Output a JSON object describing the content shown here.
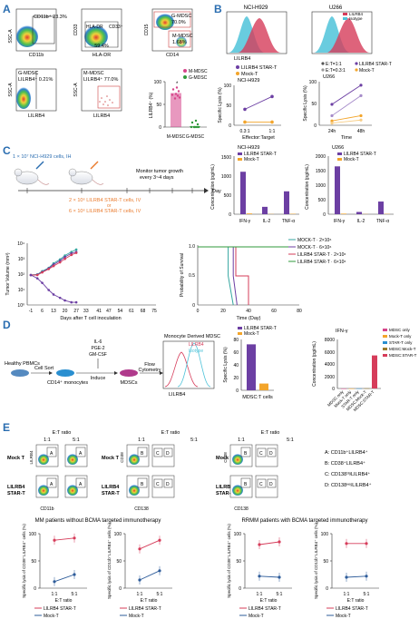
{
  "colors": {
    "lilrb4": "#d63c5a",
    "mock": "#f3a52b",
    "isotype": "#4fc3d9",
    "purple": "#6c3fa3",
    "blue": "#2e5c9a",
    "green": "#2f9a3b",
    "mdsc_pink": "#d6448a",
    "orange": "#ea7a2c",
    "teal": "#35a6a0"
  },
  "panels": {
    "A": "A",
    "B": "B",
    "C": "C",
    "D": "D",
    "E": "E"
  },
  "panelA": {
    "p1": {
      "gate": "CD11b⁺ 23.3%",
      "y": "SSC-A",
      "x": "CD11b"
    },
    "p2": {
      "gate1": "HLA-DR",
      "gate2": "CD33⁺",
      "pct": "59.4%",
      "y": "CD33",
      "x": "HLA-DR"
    },
    "p3": {
      "g1": "G-MDSC",
      "g1pct": "70.0%",
      "g2": "M-MDSC",
      "g2pct": "1.68%",
      "y": "CD15",
      "x": "CD14"
    },
    "p4": {
      "g": "G-MDSC",
      "pct": "LILRB4⁺ 0.21%",
      "y": "SSC-A",
      "x": "LILRB4"
    },
    "p5": {
      "g": "M-MDSC",
      "pct": "LILRB4⁺ 77.0%",
      "y": "SSC-A",
      "x": "LILRB4"
    },
    "bar": {
      "ylabel": "LILRB4⁺ (%)",
      "ticks": [
        "0",
        "50",
        "100"
      ],
      "cats": [
        "M-MDSC",
        "G-MDSC"
      ],
      "legend": [
        "M-MDSC",
        "G-MDSC"
      ],
      "star": "*"
    }
  },
  "panelB": {
    "h1": {
      "title": "NCI-H929",
      "x": "LILRB4"
    },
    "h2": {
      "title": "U266",
      "legend": [
        "LILRB4",
        "Isotype"
      ]
    },
    "l1": {
      "legend": [
        "LILRB4 STAR-T",
        "Mock-T"
      ],
      "sub": "NCI-H929",
      "ylabel": "Specific Lysis (%)",
      "xlabel": "Effector:Target",
      "xticks": [
        "0.3:1",
        "1:1"
      ],
      "yticks": [
        "0",
        "50",
        "100"
      ]
    },
    "l2": {
      "legend1": [
        "E:T=1:1",
        "E:T=0.3:1"
      ],
      "legend2": [
        "LILRB4 STAR-T",
        "Mock-T"
      ],
      "sub": "U266",
      "ylabel": "Specific Lysis (%)",
      "xlabel": "Time",
      "xticks": [
        "24h",
        "48h"
      ],
      "yticks": [
        "0",
        "50",
        "100"
      ]
    }
  },
  "panelC": {
    "schema": {
      "cells": "1 × 10⁷ NCI-H929 cells, IH",
      "monitor": "Monitor tumor growth",
      "every": "every 3~4 days",
      "day": "Day",
      "treat1": "2 × 10⁶ LILRB4 STAR-T cells, IV",
      "or": "or",
      "treat2": "6 × 10⁶ LILRB4 STAR-T cells, IV"
    },
    "cyto1": {
      "title": "NCI-H929",
      "legend": [
        "LILRB4 STAR-T",
        "Mock-T"
      ],
      "ylabel": "Concentration (pg/mL)",
      "yticks": [
        "0",
        "500",
        "1000",
        "1500"
      ],
      "cats": [
        "IFN-γ",
        "IL-2",
        "TNF-α"
      ]
    },
    "cyto2": {
      "title": "U266",
      "legend": [
        "LILRB4 STAR-T",
        "Mock-T"
      ],
      "ylabel": "Concentration (pg/mL)",
      "yticks": [
        "0",
        "500",
        "1000",
        "1500",
        "2000"
      ],
      "cats": [
        "IFN-γ",
        "IL-2",
        "TNF-α"
      ]
    },
    "tumor": {
      "ylabel": "Tumor Volume (mm³)",
      "xlabel": "Days after T cell inoculation",
      "yticks": [
        "10⁰",
        "10¹",
        "10²",
        "10³",
        "10⁴"
      ],
      "xticks": [
        "-1",
        "6",
        "13",
        "20",
        "27",
        "33",
        "41",
        "47",
        "54",
        "61",
        "68",
        "75"
      ]
    },
    "surv": {
      "ylabel": "Probability of Survival",
      "xlabel": "Time (Day)",
      "yticks": [
        "0",
        "0.5",
        "1.0"
      ],
      "xticks": [
        "0",
        "20",
        "40",
        "60",
        "80"
      ],
      "legend": [
        "MOCK-T · 2×10⁶",
        "MOCK-T · 6×10⁶",
        "LILRB4 STAR-T · 2×10⁶",
        "LILRB4 STAR-T · 6×10⁶"
      ]
    }
  },
  "panelD": {
    "pbmc": "Healthy PBMCs",
    "sort": "Cell Sort",
    "cd14": "CD14⁺ monocytes",
    "cytokines": [
      "IL-6",
      "PGE-2",
      "GM-CSF"
    ],
    "induce": "Induce",
    "mdscs": "MDSCs",
    "flow1": "Flow",
    "flow2": "Cytometry",
    "histo": {
      "title": "Monocyte Derived MDSC",
      "legend": [
        "LILRB4",
        "Isotype"
      ],
      "x": "LILRB4"
    },
    "lysis": {
      "legend": [
        "LILRB4 STAR-T",
        "Mock-T"
      ],
      "ylabel": "Specific Lysis (%)",
      "yticks": [
        "0",
        "20",
        "40",
        "60",
        "80"
      ],
      "xlabel": "MDSC:T cells"
    },
    "ifng": {
      "title": "IFN-γ",
      "ylabel": "Concentration (pg/mL)",
      "yticks": [
        "0",
        "2000",
        "4000",
        "6000",
        "8000"
      ],
      "cats": [
        "MDSC only",
        "Mock-T only",
        "STAR-T only",
        "MDSC:Mock-T",
        "MDSC:STAR-T"
      ],
      "legend": [
        "MDSC only",
        "Mock-T only",
        "STAR-T only",
        "MDSC:Mock-T",
        "MDSC:STAR-T"
      ]
    }
  },
  "panelE": {
    "et": "E:T ratio",
    "r11": "1:1",
    "r51": "5:1",
    "mock": "Mock T",
    "star1": "LILRB4",
    "star2": "STAR-T",
    "x_cd11b": "CD11b",
    "y_lilrb4": "LILRB4",
    "x_cd138": "CD138",
    "y_cd38": "CD38",
    "gates": [
      "A",
      "B",
      "C",
      "D"
    ],
    "key": [
      "A:  CD11b⁺LILRB4⁺",
      "B:  CD38⁺LILRB4⁺",
      "C:  CD138¹ᴵᵍLILRB4⁺",
      "D:  CD138ⁿᵉᵍLILRB4⁺"
    ],
    "mm_title": "MM  patients without BCMA  targeted immunotherapy",
    "rr_title": "RRMM  patients with BCMA targeted immunotherapy",
    "ylab1": "Specific lysis of CD38⁺LILRB4⁺ cells (%)",
    "ylab2": "Specific lysis of CD11b⁺LILRB4⁺ cells (%)",
    "yticks": [
      "0",
      "50",
      "100"
    ],
    "xticks": [
      "1:1",
      "5:1"
    ],
    "xlabel": "E:T ratio",
    "legend": [
      "LILRB4 STAR-T",
      "Mock-T"
    ]
  },
  "chart_data": [
    {
      "type": "scatter",
      "panel": "A",
      "title": "",
      "ylabel": "LILRB4⁺ (%)",
      "ylim": [
        0,
        100
      ],
      "categories": [
        "M-MDSC",
        "G-MDSC"
      ],
      "series": [
        {
          "name": "M-MDSC",
          "values": [
            75
          ]
        },
        {
          "name": "G-MDSC",
          "values": [
            2
          ]
        }
      ]
    },
    {
      "type": "line",
      "panel": "B-NCI-H929",
      "xlabel": "Effector:Target",
      "ylabel": "Specific Lysis (%)",
      "ylim": [
        0,
        100
      ],
      "x": [
        "0.3:1",
        "1:1"
      ],
      "series": [
        {
          "name": "LILRB4 STAR-T",
          "values": [
            40,
            72
          ]
        },
        {
          "name": "Mock-T",
          "values": [
            8,
            8
          ]
        }
      ]
    },
    {
      "type": "line",
      "panel": "B-U266",
      "xlabel": "Time",
      "ylabel": "Specific Lysis (%)",
      "ylim": [
        0,
        100
      ],
      "x": [
        "24h",
        "48h"
      ],
      "series": [
        {
          "name": "LILRB4 STAR-T E:T=1:1",
          "values": [
            48,
            92
          ]
        },
        {
          "name": "LILRB4 STAR-T E:T=0.3:1",
          "values": [
            22,
            68
          ]
        },
        {
          "name": "Mock-T E:T=1:1",
          "values": [
            10,
            22
          ]
        },
        {
          "name": "Mock-T E:T=0.3:1",
          "values": [
            5,
            12
          ]
        }
      ]
    },
    {
      "type": "bar",
      "panel": "C-NCI-H929",
      "title": "NCI-H929",
      "ylabel": "Concentration (pg/mL)",
      "ylim": [
        0,
        1500
      ],
      "categories": [
        "IFN-γ",
        "IL-2",
        "TNF-α"
      ],
      "series": [
        {
          "name": "LILRB4 STAR-T",
          "values": [
            1150,
            200,
            620
          ]
        },
        {
          "name": "Mock-T",
          "values": [
            20,
            5,
            10
          ]
        }
      ]
    },
    {
      "type": "bar",
      "panel": "C-U266",
      "title": "U266",
      "ylabel": "Concentration (pg/mL)",
      "ylim": [
        0,
        2000
      ],
      "categories": [
        "IFN-γ",
        "IL-2",
        "TNF-α"
      ],
      "series": [
        {
          "name": "LILRB4 STAR-T",
          "values": [
            1700,
            80,
            450
          ]
        },
        {
          "name": "Mock-T",
          "values": [
            20,
            5,
            10
          ]
        }
      ]
    },
    {
      "type": "line",
      "panel": "C-tumor",
      "ylabel": "Tumor Volume (mm³)",
      "xlabel": "Days after T cell inoculation",
      "yscale": "log",
      "x": [
        -1,
        3,
        6,
        10,
        13,
        17,
        20,
        24,
        27
      ],
      "series": [
        {
          "name": "MOCK-T 2×10⁶",
          "values": [
            100,
            110,
            180,
            300,
            600,
            1100,
            2000,
            3500,
            5000
          ]
        },
        {
          "name": "MOCK-T 6×10⁶",
          "values": [
            100,
            105,
            160,
            280,
            500,
            900,
            1600,
            2800,
            3500
          ]
        },
        {
          "name": "LILRB4 STAR-T 2×10⁶",
          "values": [
            100,
            100,
            150,
            250,
            400,
            700,
            1200,
            2200,
            3000
          ]
        },
        {
          "name": "LILRB4 STAR-T 6×10⁶",
          "values": [
            100,
            60,
            30,
            10,
            5,
            3,
            2,
            1.5,
            1.5
          ]
        }
      ]
    },
    {
      "type": "line",
      "panel": "C-survival",
      "ylabel": "Probability of Survival",
      "xlabel": "Time (Day)",
      "xlim": [
        0,
        80
      ],
      "ylim": [
        0,
        1
      ],
      "series": [
        {
          "name": "MOCK-T 2×10⁶",
          "x": [
            0,
            24,
            24,
            28
          ],
          "values": [
            1,
            1,
            0.5,
            0
          ]
        },
        {
          "name": "MOCK-T 6×10⁶",
          "x": [
            0,
            28,
            28,
            31
          ],
          "values": [
            1,
            1,
            0.5,
            0
          ]
        },
        {
          "name": "LILRB4 STAR-T 2×10⁶",
          "x": [
            0,
            30,
            30,
            40,
            40
          ],
          "values": [
            1,
            1,
            0.5,
            0.5,
            0
          ]
        },
        {
          "name": "LILRB4 STAR-T 6×10⁶",
          "x": [
            0,
            76
          ],
          "values": [
            1,
            1
          ]
        }
      ]
    },
    {
      "type": "bar",
      "panel": "D-lysis",
      "ylabel": "Specific Lysis (%)",
      "ylim": [
        0,
        80
      ],
      "categories": [
        "MDSC:T cells"
      ],
      "series": [
        {
          "name": "LILRB4 STAR-T",
          "values": [
            75
          ]
        },
        {
          "name": "Mock-T",
          "values": [
            11
          ]
        }
      ]
    },
    {
      "type": "bar",
      "panel": "D-IFNg",
      "title": "IFN-γ",
      "ylabel": "Concentration (pg/mL)",
      "ylim": [
        0,
        8000
      ],
      "categories": [
        "MDSC only",
        "Mock-T only",
        "STAR-T only",
        "MDSC:Mock-T",
        "MDSC:STAR-T"
      ],
      "values": [
        0,
        0,
        20,
        30,
        5600
      ]
    },
    {
      "type": "line",
      "panel": "E-MM-CD38",
      "ylabel": "Specific lysis of CD38⁺LILRB4⁺ cells (%)",
      "xlabel": "E:T ratio",
      "ylim": [
        0,
        100
      ],
      "x": [
        "1:1",
        "5:1"
      ],
      "series": [
        {
          "name": "LILRB4 STAR-T",
          "values": [
            88,
            92
          ]
        },
        {
          "name": "Mock-T",
          "values": [
            12,
            25
          ]
        }
      ]
    },
    {
      "type": "line",
      "panel": "E-MM-CD11b",
      "ylabel": "Specific lysis of CD11b⁺LILRB4⁺ cells (%)",
      "xlabel": "E:T ratio",
      "ylim": [
        0,
        100
      ],
      "x": [
        "1:1",
        "5:1"
      ],
      "series": [
        {
          "name": "LILRB4 STAR-T",
          "values": [
            72,
            88
          ]
        },
        {
          "name": "Mock-T",
          "values": [
            15,
            32
          ]
        }
      ]
    },
    {
      "type": "line",
      "panel": "E-RRMM-CD38",
      "ylabel": "Specific lysis of CD38⁺LILRB4⁺ cells (%)",
      "xlabel": "E:T ratio",
      "ylim": [
        0,
        100
      ],
      "x": [
        "1:1",
        "5:1"
      ],
      "series": [
        {
          "name": "LILRB4 STAR-T",
          "values": [
            80,
            85
          ]
        },
        {
          "name": "Mock-T",
          "values": [
            22,
            20
          ]
        }
      ]
    },
    {
      "type": "line",
      "panel": "E-RRMM-CD11b",
      "ylabel": "Specific lysis of CD11b⁺LILRB4⁺ cells (%)",
      "xlabel": "E:T ratio",
      "ylim": [
        0,
        100
      ],
      "x": [
        "1:1",
        "5:1"
      ],
      "series": [
        {
          "name": "LILRB4 STAR-T",
          "values": [
            82,
            82
          ]
        },
        {
          "name": "Mock-T",
          "values": [
            20,
            22
          ]
        }
      ]
    }
  ]
}
